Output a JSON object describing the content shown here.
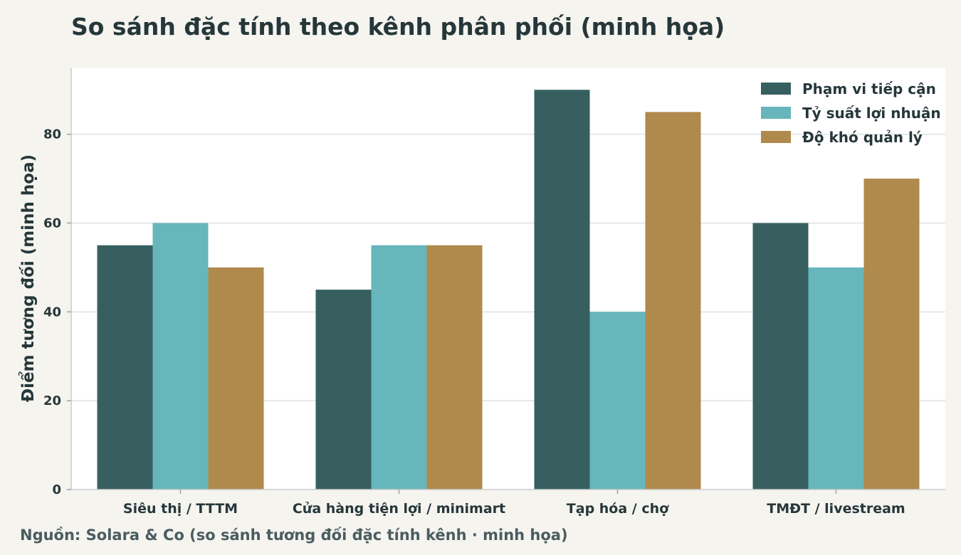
{
  "chart_data": {
    "type": "bar",
    "title": "So sánh đặc tính theo kênh phân phối (minh họa)",
    "ylabel": "Điểm tương đối (minh họa)",
    "xlabel": "",
    "ylim": [
      0,
      95
    ],
    "yticks": [
      0,
      20,
      40,
      60,
      80
    ],
    "grid": true,
    "legend_position": "top-right",
    "categories": [
      "Siêu thị / TTTM",
      "Cửa hàng tiện lợi / minimart",
      "Tạp hóa / chợ",
      "TMĐT / livestream"
    ],
    "series": [
      {
        "name": "Phạm vi tiếp cận",
        "color": "#375f60",
        "values": [
          55,
          45,
          90,
          60
        ]
      },
      {
        "name": "Tỷ suất lợi nhuận",
        "color": "#66b6bb",
        "values": [
          60,
          55,
          40,
          50
        ]
      },
      {
        "name": "Độ khó quản lý",
        "color": "#b0894d",
        "values": [
          50,
          55,
          85,
          70
        ]
      }
    ],
    "source": "Nguồn: Solara & Co (so sánh tương đối đặc tính kênh · minh họa)"
  }
}
